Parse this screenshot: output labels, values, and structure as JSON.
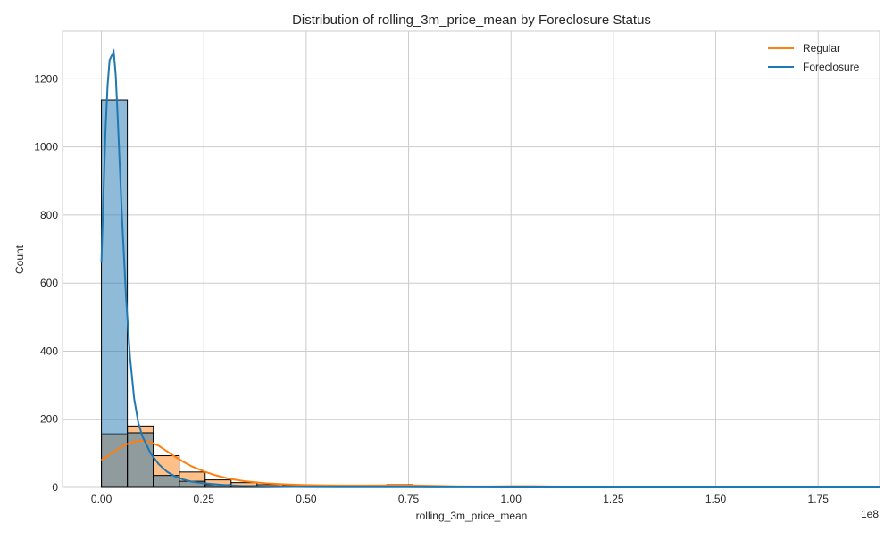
{
  "chart_data": {
    "type": "histogram",
    "title": "Distribution of rolling_3m_price_mean by Foreclosure Status",
    "xlabel": "rolling_3m_price_mean",
    "ylabel": "Count",
    "x_offset_label": "1e8",
    "x_scale_factor": 100000000,
    "xlim": [
      -0.095,
      1.9
    ],
    "ylim": [
      0,
      1340
    ],
    "x_ticks": [
      0.0,
      0.25,
      0.5,
      0.75,
      1.0,
      1.25,
      1.5,
      1.75
    ],
    "x_tick_labels": [
      "0.00",
      "0.25",
      "0.50",
      "0.75",
      "1.00",
      "1.25",
      "1.50",
      "1.75"
    ],
    "y_ticks": [
      0,
      200,
      400,
      600,
      800,
      1000,
      1200
    ],
    "y_tick_labels": [
      "0",
      "200",
      "400",
      "600",
      "800",
      "1000",
      "1200"
    ],
    "grid": true,
    "legend_position": "top-right",
    "bin_width": 0.0633,
    "series": [
      {
        "name": "Regular",
        "color": "#ff7f0e",
        "bins": [
          {
            "x0": 0.0,
            "x1": 0.0633,
            "count": 157
          },
          {
            "x0": 0.0633,
            "x1": 0.1267,
            "count": 180
          },
          {
            "x0": 0.1267,
            "x1": 0.19,
            "count": 93
          },
          {
            "x0": 0.19,
            "x1": 0.2533,
            "count": 45
          },
          {
            "x0": 0.2533,
            "x1": 0.3167,
            "count": 22
          },
          {
            "x0": 0.3167,
            "x1": 0.38,
            "count": 14
          },
          {
            "x0": 0.38,
            "x1": 0.4433,
            "count": 8
          },
          {
            "x0": 0.4433,
            "x1": 0.5067,
            "count": 5
          },
          {
            "x0": 0.5067,
            "x1": 0.57,
            "count": 3
          },
          {
            "x0": 0.57,
            "x1": 0.6333,
            "count": 3
          },
          {
            "x0": 0.6333,
            "x1": 0.6967,
            "count": 2
          },
          {
            "x0": 0.6967,
            "x1": 0.76,
            "count": 8
          },
          {
            "x0": 0.76,
            "x1": 0.8233,
            "count": 1
          },
          {
            "x0": 0.8233,
            "x1": 0.8867,
            "count": 1
          },
          {
            "x0": 0.8867,
            "x1": 0.95,
            "count": 1
          },
          {
            "x0": 0.95,
            "x1": 1.0133,
            "count": 2
          },
          {
            "x0": 1.0133,
            "x1": 1.0767,
            "count": 4
          },
          {
            "x0": 1.0767,
            "x1": 1.14,
            "count": 1
          },
          {
            "x0": 1.14,
            "x1": 1.2033,
            "count": 2
          },
          {
            "x0": 1.2033,
            "x1": 1.2667,
            "count": 1
          },
          {
            "x0": 1.2667,
            "x1": 1.33,
            "count": 0
          },
          {
            "x0": 1.33,
            "x1": 1.3933,
            "count": 0
          },
          {
            "x0": 1.3933,
            "x1": 1.4567,
            "count": 0
          },
          {
            "x0": 1.4567,
            "x1": 1.52,
            "count": 0
          },
          {
            "x0": 1.52,
            "x1": 1.5833,
            "count": 0
          },
          {
            "x0": 1.5833,
            "x1": 1.6467,
            "count": 0
          },
          {
            "x0": 1.6467,
            "x1": 1.71,
            "count": 0
          },
          {
            "x0": 1.71,
            "x1": 1.7733,
            "count": 0
          },
          {
            "x0": 1.7733,
            "x1": 1.8367,
            "count": 0
          },
          {
            "x0": 1.8367,
            "x1": 1.9,
            "count": 1
          }
        ],
        "kde": [
          [
            0.0,
            80
          ],
          [
            0.02,
            96
          ],
          [
            0.04,
            112
          ],
          [
            0.06,
            126
          ],
          [
            0.08,
            134
          ],
          [
            0.1,
            137
          ],
          [
            0.12,
            133
          ],
          [
            0.14,
            122
          ],
          [
            0.16,
            106
          ],
          [
            0.18,
            90
          ],
          [
            0.2,
            75
          ],
          [
            0.22,
            62
          ],
          [
            0.25,
            47
          ],
          [
            0.28,
            35
          ],
          [
            0.31,
            26
          ],
          [
            0.35,
            18
          ],
          [
            0.4,
            12
          ],
          [
            0.45,
            9
          ],
          [
            0.5,
            7
          ],
          [
            0.55,
            6
          ],
          [
            0.6,
            5.5
          ],
          [
            0.65,
            5.5
          ],
          [
            0.7,
            6
          ],
          [
            0.75,
            6
          ],
          [
            0.8,
            5
          ],
          [
            0.85,
            3.5
          ],
          [
            0.9,
            3
          ],
          [
            0.95,
            3
          ],
          [
            1.0,
            3.5
          ],
          [
            1.05,
            3.5
          ],
          [
            1.1,
            3
          ],
          [
            1.15,
            2.5
          ],
          [
            1.2,
            2
          ],
          [
            1.3,
            1
          ],
          [
            1.4,
            0.6
          ],
          [
            1.5,
            0.4
          ],
          [
            1.6,
            0.3
          ],
          [
            1.7,
            0.3
          ],
          [
            1.8,
            0.3
          ],
          [
            1.9,
            0.3
          ]
        ]
      },
      {
        "name": "Foreclosure",
        "color": "#1f77b4",
        "bins": [
          {
            "x0": 0.0,
            "x1": 0.0633,
            "count": 1138
          },
          {
            "x0": 0.0633,
            "x1": 0.1267,
            "count": 160
          },
          {
            "x0": 0.1267,
            "x1": 0.19,
            "count": 35
          },
          {
            "x0": 0.19,
            "x1": 0.2533,
            "count": 18
          },
          {
            "x0": 0.2533,
            "x1": 0.3167,
            "count": 8
          },
          {
            "x0": 0.3167,
            "x1": 0.38,
            "count": 5
          },
          {
            "x0": 0.38,
            "x1": 0.4433,
            "count": 3
          },
          {
            "x0": 0.4433,
            "x1": 0.5067,
            "count": 1
          },
          {
            "x0": 0.5067,
            "x1": 0.57,
            "count": 1
          },
          {
            "x0": 0.57,
            "x1": 0.6333,
            "count": 0
          },
          {
            "x0": 0.6333,
            "x1": 0.6967,
            "count": 0
          },
          {
            "x0": 0.6967,
            "x1": 0.76,
            "count": 1
          },
          {
            "x0": 0.76,
            "x1": 0.8233,
            "count": 0
          },
          {
            "x0": 0.8233,
            "x1": 0.8867,
            "count": 0
          },
          {
            "x0": 0.8867,
            "x1": 0.95,
            "count": 0
          },
          {
            "x0": 0.95,
            "x1": 1.0133,
            "count": 0
          },
          {
            "x0": 1.0133,
            "x1": 1.0767,
            "count": 0
          },
          {
            "x0": 1.0767,
            "x1": 1.14,
            "count": 0
          },
          {
            "x0": 1.14,
            "x1": 1.2033,
            "count": 0
          },
          {
            "x0": 1.2033,
            "x1": 1.2667,
            "count": 0
          },
          {
            "x0": 1.2667,
            "x1": 1.33,
            "count": 0
          },
          {
            "x0": 1.33,
            "x1": 1.3933,
            "count": 0
          },
          {
            "x0": 1.3933,
            "x1": 1.4567,
            "count": 0
          },
          {
            "x0": 1.4567,
            "x1": 1.52,
            "count": 0
          },
          {
            "x0": 1.52,
            "x1": 1.5833,
            "count": 0
          },
          {
            "x0": 1.5833,
            "x1": 1.6467,
            "count": 0
          },
          {
            "x0": 1.6467,
            "x1": 1.71,
            "count": 0
          },
          {
            "x0": 1.71,
            "x1": 1.7733,
            "count": 0
          },
          {
            "x0": 1.7733,
            "x1": 1.8367,
            "count": 0
          },
          {
            "x0": 1.8367,
            "x1": 1.9,
            "count": 0
          }
        ],
        "kde": [
          [
            0.0,
            660
          ],
          [
            0.005,
            860
          ],
          [
            0.01,
            1050
          ],
          [
            0.015,
            1180
          ],
          [
            0.02,
            1255
          ],
          [
            0.03,
            1280
          ],
          [
            0.035,
            1210
          ],
          [
            0.04,
            1080
          ],
          [
            0.05,
            800
          ],
          [
            0.06,
            560
          ],
          [
            0.07,
            380
          ],
          [
            0.08,
            260
          ],
          [
            0.09,
            190
          ],
          [
            0.1,
            150
          ],
          [
            0.12,
            100
          ],
          [
            0.14,
            68
          ],
          [
            0.16,
            46
          ],
          [
            0.18,
            32
          ],
          [
            0.2,
            23
          ],
          [
            0.22,
            17
          ],
          [
            0.25,
            12
          ],
          [
            0.3,
            7
          ],
          [
            0.35,
            4
          ],
          [
            0.4,
            2.5
          ],
          [
            0.45,
            1.5
          ],
          [
            0.5,
            1
          ],
          [
            0.6,
            0.6
          ],
          [
            0.7,
            0.5
          ],
          [
            0.75,
            0.5
          ],
          [
            0.8,
            0.3
          ],
          [
            0.9,
            0.2
          ],
          [
            1.0,
            0.1
          ],
          [
            1.2,
            0.05
          ],
          [
            1.5,
            0.02
          ],
          [
            1.9,
            0
          ]
        ]
      }
    ]
  }
}
